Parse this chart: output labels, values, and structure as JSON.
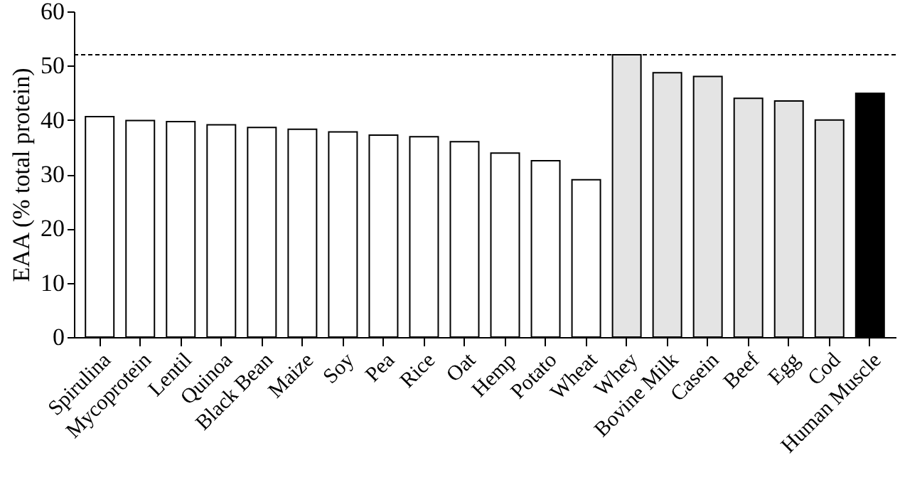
{
  "chart_data": {
    "type": "bar",
    "ylabel": "EAA (% total protein)",
    "categories": [
      "Spirulina",
      "Mycoprotein",
      "Lentil",
      "Quinoa",
      "Black Bean",
      "Maize",
      "Soy",
      "Pea",
      "Rice",
      "Oat",
      "Hemp",
      "Potato",
      "Wheat",
      "Whey",
      "Bovine Milk",
      "Casein",
      "Beef",
      "Egg",
      "Cod",
      "Human Muscle"
    ],
    "values": [
      40.6,
      39.9,
      39.7,
      39.1,
      38.6,
      38.3,
      37.8,
      37.2,
      36.9,
      36.0,
      33.9,
      32.5,
      29.0,
      52.0,
      48.7,
      48.0,
      44.0,
      43.5,
      40.0,
      44.9
    ],
    "colors": [
      "#ffffff",
      "#ffffff",
      "#ffffff",
      "#ffffff",
      "#ffffff",
      "#ffffff",
      "#ffffff",
      "#ffffff",
      "#ffffff",
      "#ffffff",
      "#ffffff",
      "#ffffff",
      "#ffffff",
      "#e4e4e4",
      "#e4e4e4",
      "#e4e4e4",
      "#e4e4e4",
      "#e4e4e4",
      "#e4e4e4",
      "#000000"
    ],
    "ylim": [
      0,
      60
    ],
    "yticks": [
      0,
      10,
      20,
      30,
      40,
      50,
      60
    ],
    "grid": false,
    "ref_lines": [
      {
        "axis": "y",
        "value": 52,
        "line_style": "dashed"
      }
    ]
  }
}
